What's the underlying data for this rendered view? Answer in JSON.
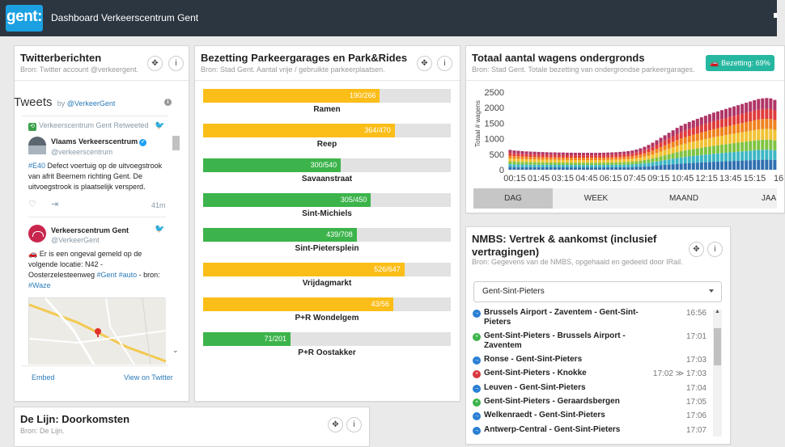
{
  "app": {
    "logo_text": "gent:",
    "title": "Dashboard Verkeerscentrum Gent"
  },
  "colors": {
    "green": "#3cb44b",
    "yellow": "#fbbd18",
    "track": "#e2e2e2",
    "badge": "#26b7a0"
  },
  "twitter": {
    "title": "Twitterberichten",
    "source": "Bron: Twitter account @verkeergent.",
    "header": "Tweets",
    "by": "by",
    "by_handle": "@VerkeerGent",
    "retweet_label": "Verkeerscentrum Gent Retweeted",
    "tweets": [
      {
        "name": "Vlaams Verkeerscentrum",
        "handle": "@verkeerscentrum",
        "text_tag": "#E40",
        "text": " Defect voertuig op de uitvoegstrook van afrit Beernem richting Gent. De uitvoegstrook is plaatselijk versperd.",
        "time": "41m"
      },
      {
        "name": "Verkeerscentrum Gent",
        "handle": "@VerkeerGent",
        "text_a": "🚗 Er is een ongeval gemeld op de volgende locatie: N42 - Oosterzelesteenweg ",
        "tag1": "#Gent",
        "tag2": "#auto",
        "text_b": " - bron: ",
        "tag3": "#Waze"
      }
    ],
    "embed": "Embed",
    "view_on": "View on Twitter"
  },
  "parking": {
    "title": "Bezetting Parkeergarages en Park&Rides",
    "source": "Bron: Stad Gent. Aantal vrije / gebruikte parkeerplaatsen.",
    "items": [
      {
        "name": "Ramen",
        "label": "190/266",
        "fraction": 0.714,
        "status": "yellow"
      },
      {
        "name": "Reep",
        "label": "364/470",
        "fraction": 0.774,
        "status": "yellow"
      },
      {
        "name": "Savaanstraat",
        "label": "300/540",
        "fraction": 0.556,
        "status": "green"
      },
      {
        "name": "Sint-Michiels",
        "label": "305/450",
        "fraction": 0.678,
        "status": "green"
      },
      {
        "name": "Sint-Pietersplein",
        "label": "439/708",
        "fraction": 0.62,
        "status": "green"
      },
      {
        "name": "Vrijdagmarkt",
        "label": "526/647",
        "fraction": 0.813,
        "status": "yellow"
      },
      {
        "name": "P+R Wondelgem",
        "label": "43/56",
        "fraction": 0.768,
        "status": "yellow"
      },
      {
        "name": "P+R Oostakker",
        "label": "71/201",
        "fraction": 0.353,
        "status": "green"
      }
    ]
  },
  "underground": {
    "title": "Totaal aantal wagens ondergronds",
    "source": "Bron: Stad Gent. Totale bezetting van ondergrondse parkeergarages.",
    "badge": "Bezetting: 69%",
    "tabs": [
      "DAG",
      "WEEK",
      "MAAND",
      "JAA"
    ],
    "active_tab": 0
  },
  "chart_data": {
    "type": "bar",
    "stacked": true,
    "ylabel": "Totaal # wagens",
    "ylim": [
      0,
      2500
    ],
    "yticks": [
      0,
      500,
      1000,
      1500,
      2000,
      2500
    ],
    "xticks": [
      "00:15",
      "01:45",
      "03:15",
      "04:45",
      "06:15",
      "07:45",
      "09:15",
      "10:45",
      "12:15",
      "13:45",
      "15:15",
      "16"
    ],
    "series_colors": [
      "#2f6fb0",
      "#3cb6c4",
      "#7fc341",
      "#f1c232",
      "#f0821e",
      "#e03b3b",
      "#b03566"
    ],
    "totals": [
      640,
      620,
      610,
      600,
      590,
      585,
      580,
      575,
      570,
      565,
      560,
      560,
      555,
      555,
      550,
      550,
      548,
      548,
      545,
      545,
      545,
      545,
      548,
      550,
      555,
      560,
      565,
      575,
      585,
      600,
      620,
      650,
      690,
      740,
      800,
      870,
      950,
      1030,
      1110,
      1190,
      1270,
      1350,
      1420,
      1480,
      1540,
      1590,
      1640,
      1690,
      1740,
      1790,
      1840,
      1880,
      1920,
      1960,
      2000,
      2040,
      2080,
      2120,
      2160,
      2200,
      2240,
      2280,
      2300,
      2310,
      2300,
      2250
    ]
  },
  "nmbs": {
    "title_line1": "NMBS: Vertrek & aankomst (inclusief",
    "title_line2": "vertragingen)",
    "source": "Bron: Gegevens van de NMBS, opgehaald en gedeeld door IRail.",
    "station": "Gent-Sint-Pieters",
    "trains": [
      {
        "name": "Brussels Airport - Zaventem - Gent-Sint-Pieters",
        "time": "16:56",
        "type": "departure"
      },
      {
        "name": "Gent-Sint-Pieters - Brussels Airport - Zaventem",
        "time": "17:01",
        "type": "arrival"
      },
      {
        "name": "Ronse - Gent-Sint-Pieters",
        "time": "17:03",
        "type": "departure"
      },
      {
        "name": "Gent-Sint-Pieters - Knokke",
        "time": "17:02 ≫ 17:03",
        "type": "delayed"
      },
      {
        "name": "Leuven - Gent-Sint-Pieters",
        "time": "17:04",
        "type": "departure"
      },
      {
        "name": "Gent-Sint-Pieters - Geraardsbergen",
        "time": "17:05",
        "type": "arrival"
      },
      {
        "name": "Welkenraedt - Gent-Sint-Pieters",
        "time": "17:06",
        "type": "departure"
      },
      {
        "name": "Antwerp-Central - Gent-Sint-Pieters",
        "time": "17:07",
        "type": "departure"
      }
    ]
  },
  "delijn": {
    "title": "De Lijn: Doorkomsten",
    "source": "Bron: De Lijn."
  },
  "icons": {
    "move": "move-icon",
    "info": "info-icon"
  }
}
